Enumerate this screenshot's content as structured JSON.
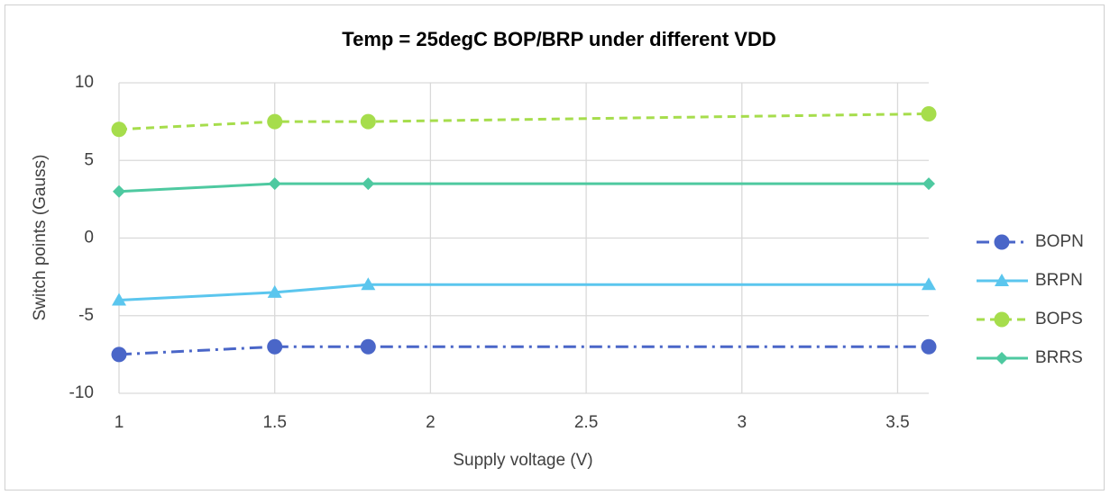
{
  "chart_data": {
    "type": "line",
    "title": "Temp = 25degC BOP/BRP  under different VDD",
    "x_label": "Supply voltage (V)",
    "y_label": "Switch points (Gauss)",
    "x": [
      1,
      1.5,
      1.8,
      3.6
    ],
    "series": [
      {
        "name": "BOPN",
        "color": "#4a66c8",
        "dash": "dashdot",
        "marker": "circle",
        "values": [
          -7.5,
          -7,
          -7,
          -7
        ]
      },
      {
        "name": "BRPN",
        "color": "#5bc6ee",
        "dash": "solid",
        "marker": "triangle",
        "values": [
          -4,
          -3.5,
          -3,
          -3
        ]
      },
      {
        "name": "BOPS",
        "color": "#a6dd4c",
        "dash": "dash",
        "marker": "circle",
        "values": [
          7,
          7.5,
          7.5,
          8
        ]
      },
      {
        "name": "BRRS",
        "color": "#4ec9a0",
        "dash": "solid",
        "marker": "diamond",
        "values": [
          3,
          3.5,
          3.5,
          3.5
        ]
      }
    ],
    "xlim": [
      1,
      3.6
    ],
    "xticks": [
      1,
      1.5,
      2,
      2.5,
      3,
      3.5
    ],
    "ylim": [
      -10,
      10
    ],
    "yticks": [
      -10,
      -5,
      0,
      5,
      10
    ],
    "grid": true,
    "legend": "right"
  }
}
